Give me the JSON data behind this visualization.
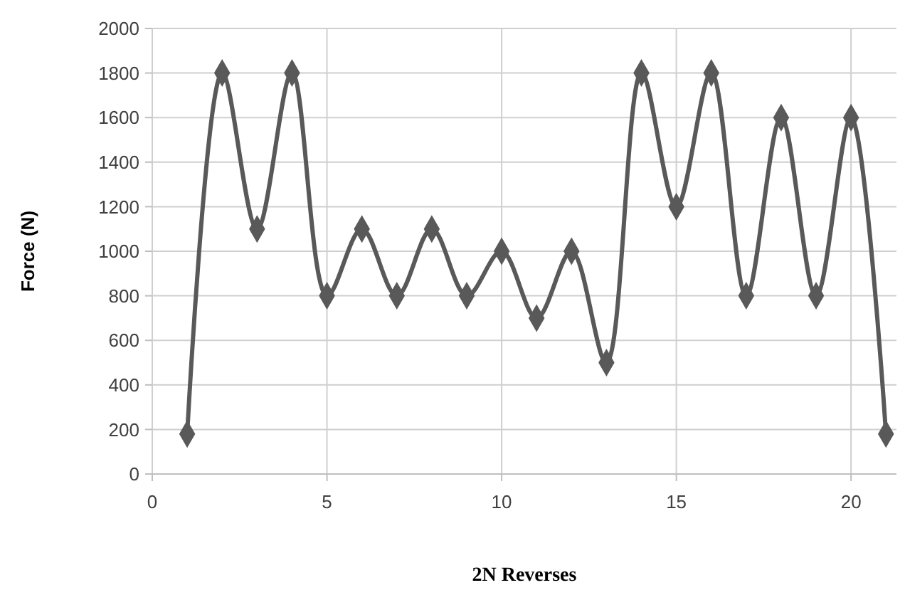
{
  "chart_data": {
    "type": "line",
    "xlabel": "2N Reverses",
    "ylabel": "Force (N)",
    "x": [
      1,
      2,
      3,
      4,
      5,
      6,
      7,
      8,
      9,
      10,
      11,
      12,
      13,
      14,
      15,
      16,
      17,
      18,
      19,
      20,
      21
    ],
    "series": [
      {
        "color": "#595959",
        "values": [
          180,
          1800,
          1100,
          1800,
          800,
          1100,
          800,
          1100,
          800,
          1000,
          700,
          1000,
          500,
          1800,
          1200,
          1800,
          800,
          1600,
          800,
          1600,
          180
        ]
      }
    ],
    "xlim": [
      0,
      21.3
    ],
    "xticks": [
      0,
      5,
      10,
      15,
      20
    ],
    "ylim": [
      0,
      2000
    ],
    "yticks": [
      0,
      200,
      400,
      600,
      800,
      1000,
      1200,
      1400,
      1600,
      1800,
      2000
    ],
    "grid": true,
    "marker": "diamond",
    "line_style": "solid"
  }
}
